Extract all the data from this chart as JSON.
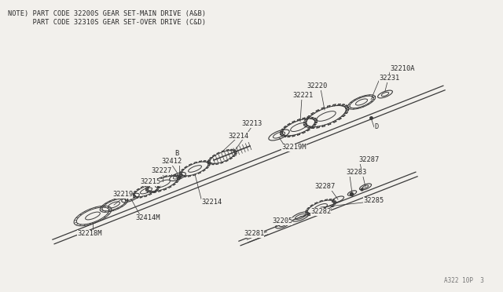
{
  "bg_color": "#f2f0ec",
  "line_color": "#3a3a3a",
  "text_color": "#2a2a2a",
  "title_line1": "NOTE) PART CODE 32200S GEAR SET-MAIN DRIVE (A&B)",
  "title_line2": "      PART CODE 32310S GEAR SET-OVER DRIVE (C&D)",
  "footer": "A322 10P  3",
  "figw": 6.4,
  "figh": 3.72,
  "dpi": 100
}
